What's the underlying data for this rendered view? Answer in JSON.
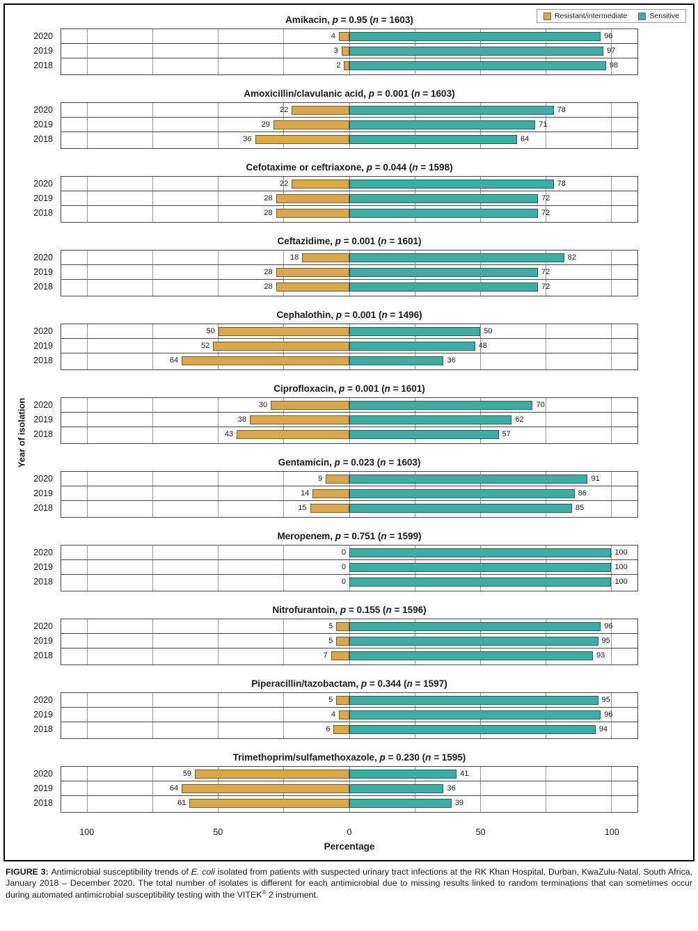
{
  "legend": {
    "items": [
      {
        "label": "Resistant/intermediate",
        "color": "#D9A74E"
      },
      {
        "label": "Sensitive",
        "color": "#41ACA3"
      }
    ]
  },
  "axes": {
    "ylabel": "Year of isolation",
    "xlabel": "Percentage",
    "xticks": [
      {
        "label": "100",
        "u": -100
      },
      {
        "label": "50",
        "u": -50
      },
      {
        "label": "0",
        "u": 0
      },
      {
        "label": "50",
        "u": 50
      },
      {
        "label": "100",
        "u": 100
      }
    ]
  },
  "chart_data": {
    "type": "bar",
    "orientation": "diverging-horizontal",
    "xlim": [
      -110,
      110
    ],
    "gridline_step": 25,
    "grid": true,
    "legend_position": "top-right",
    "years": [
      "2020",
      "2019",
      "2018"
    ],
    "series_names": [
      "Resistant/intermediate",
      "Sensitive"
    ],
    "colors": {
      "resistant": "#D9A74E",
      "sensitive": "#41ACA3"
    },
    "panels": [
      {
        "name": "Amikacin",
        "p": "0.95",
        "n": "1603",
        "resistant": [
          4,
          3,
          2
        ],
        "sensitive": [
          96,
          97,
          98
        ]
      },
      {
        "name": "Amoxicillin/clavulanic acid",
        "p": "0.001",
        "n": "1603",
        "resistant": [
          22,
          29,
          36
        ],
        "sensitive": [
          78,
          71,
          64
        ]
      },
      {
        "name": "Cefotaxime or ceftriaxone",
        "p": "0.044",
        "n": "1598",
        "resistant": [
          22,
          28,
          28
        ],
        "sensitive": [
          78,
          72,
          72
        ]
      },
      {
        "name": "Ceftazidime",
        "p": "0.001",
        "n": "1601",
        "resistant": [
          18,
          28,
          28
        ],
        "sensitive": [
          82,
          72,
          72
        ]
      },
      {
        "name": "Cephalothin",
        "p": "0.001",
        "n": "1496",
        "resistant": [
          50,
          52,
          64
        ],
        "sensitive": [
          50,
          48,
          36
        ]
      },
      {
        "name": "Ciprofloxacin",
        "p": "0.001",
        "n": "1601",
        "resistant": [
          30,
          38,
          43
        ],
        "sensitive": [
          70,
          62,
          57
        ]
      },
      {
        "name": "Gentamicin",
        "p": "0.023",
        "n": "1603",
        "resistant": [
          9,
          14,
          15
        ],
        "sensitive": [
          91,
          86,
          85
        ]
      },
      {
        "name": "Meropenem",
        "p": "0.751",
        "n": "1599",
        "resistant": [
          0,
          0,
          0
        ],
        "sensitive": [
          100,
          100,
          100
        ]
      },
      {
        "name": "Nitrofurantoin",
        "p": "0.155",
        "n": "1596",
        "resistant": [
          5,
          5,
          7
        ],
        "sensitive": [
          96,
          95,
          93
        ]
      },
      {
        "name": "Piperacillin/tazobactam",
        "p": "0.344",
        "n": "1597",
        "resistant": [
          5,
          4,
          6
        ],
        "sensitive": [
          95,
          96,
          94
        ]
      },
      {
        "name": "Trimethoprim/sulfamethoxazole",
        "p": "0.230",
        "n": "1595",
        "resistant": [
          59,
          64,
          61
        ],
        "sensitive": [
          41,
          36,
          39
        ]
      }
    ]
  },
  "caption": {
    "label": "FIGURE 3:",
    "segments": [
      {
        "text": "Antimicrobial susceptibility trends of "
      },
      {
        "text": "E. coli",
        "italic": true
      },
      {
        "text": " isolated from patients with suspected urinary tract infections at the RK Khan Hospital, Durban, KwaZulu-Natal, South Africa, January 2018 – December 2020. The total number of isolates is different for each antimicrobial due to missing results linked to random terminations that can sometimes occur during automated antimicrobial susceptibility testing with the VITEK"
      },
      {
        "text": "®",
        "sup": true
      },
      {
        "text": " 2 instrument."
      }
    ]
  }
}
